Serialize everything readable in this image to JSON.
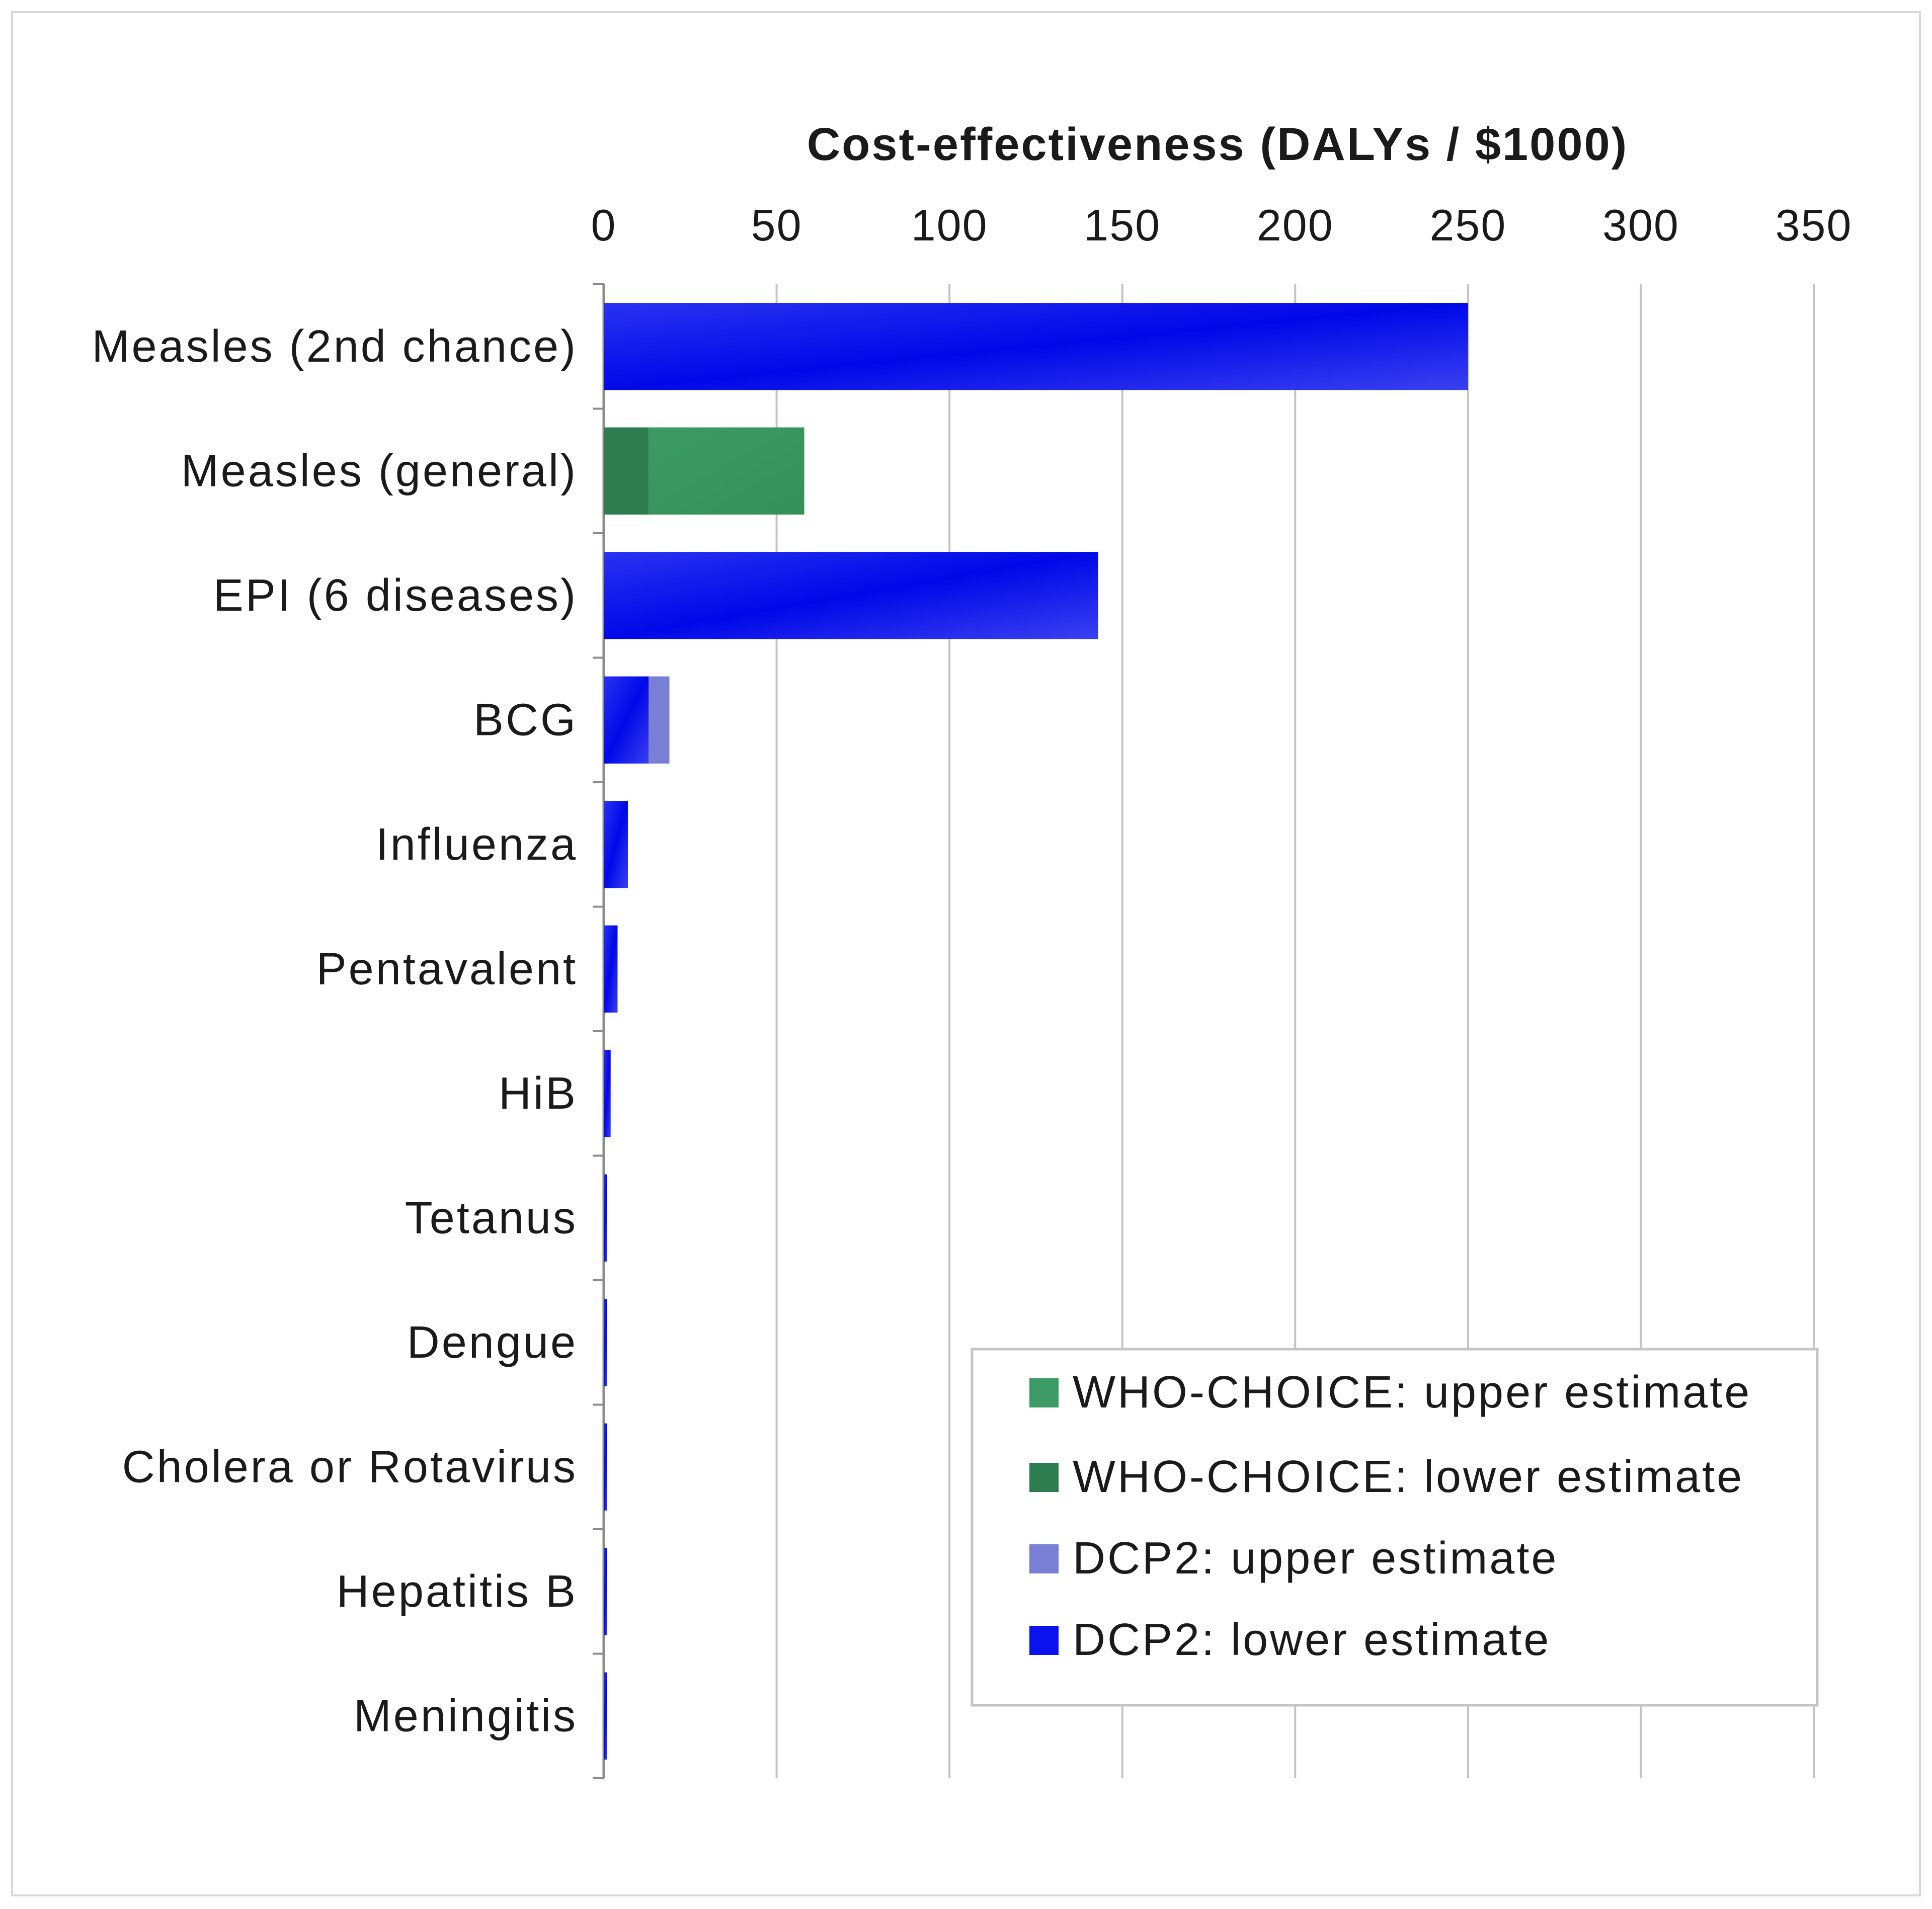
{
  "chart_data": {
    "type": "bar",
    "orientation": "horizontal",
    "stacked": true,
    "title": "Cost-effectiveness  (DALYs / $1000)",
    "xlabel": "Cost-effectiveness  (DALYs / $1000)",
    "ylabel": "",
    "xlim": [
      0,
      350
    ],
    "x_ticks": [
      0,
      50,
      100,
      150,
      200,
      250,
      300,
      350
    ],
    "x_axis_position": "top",
    "grid": true,
    "legend_position": "bottom-right",
    "categories": [
      "Measles (2nd chance)",
      "Measles (general)",
      "EPI (6 diseases)",
      "BCG",
      "Influenza",
      "Pentavalent",
      "HiB",
      "Tetanus",
      "Dengue",
      "Cholera or Rotavirus",
      "Hepatitis B",
      "Meningitis"
    ],
    "series": [
      {
        "name": "DCP2: lower estimate",
        "color": "#0a12ee",
        "values": [
          250,
          0,
          143,
          13,
          7,
          4,
          2,
          1,
          1,
          1,
          1,
          1
        ]
      },
      {
        "name": "DCP2: upper estimate",
        "color": "#7a7fd6",
        "values": [
          0,
          0,
          0,
          6,
          0,
          0,
          0,
          0,
          0,
          0,
          0,
          0
        ]
      },
      {
        "name": "WHO-CHOICE: lower estimate",
        "color": "#2e7d50",
        "values": [
          0,
          13,
          0,
          0,
          0,
          0,
          0,
          0,
          0,
          0,
          0,
          0
        ]
      },
      {
        "name": "WHO-CHOICE: upper estimate",
        "color": "#3c9a64",
        "values": [
          0,
          45,
          0,
          0,
          0,
          0,
          0,
          0,
          0,
          0,
          0,
          0
        ]
      }
    ],
    "legend_order": [
      "WHO-CHOICE: upper estimate",
      "WHO-CHOICE: lower estimate",
      "DCP2: upper estimate",
      "DCP2: lower estimate"
    ],
    "colors": {
      "grid": "#c4c4c4",
      "axis": "#8c8c8c",
      "legend_border": "#c4c4c4"
    }
  }
}
